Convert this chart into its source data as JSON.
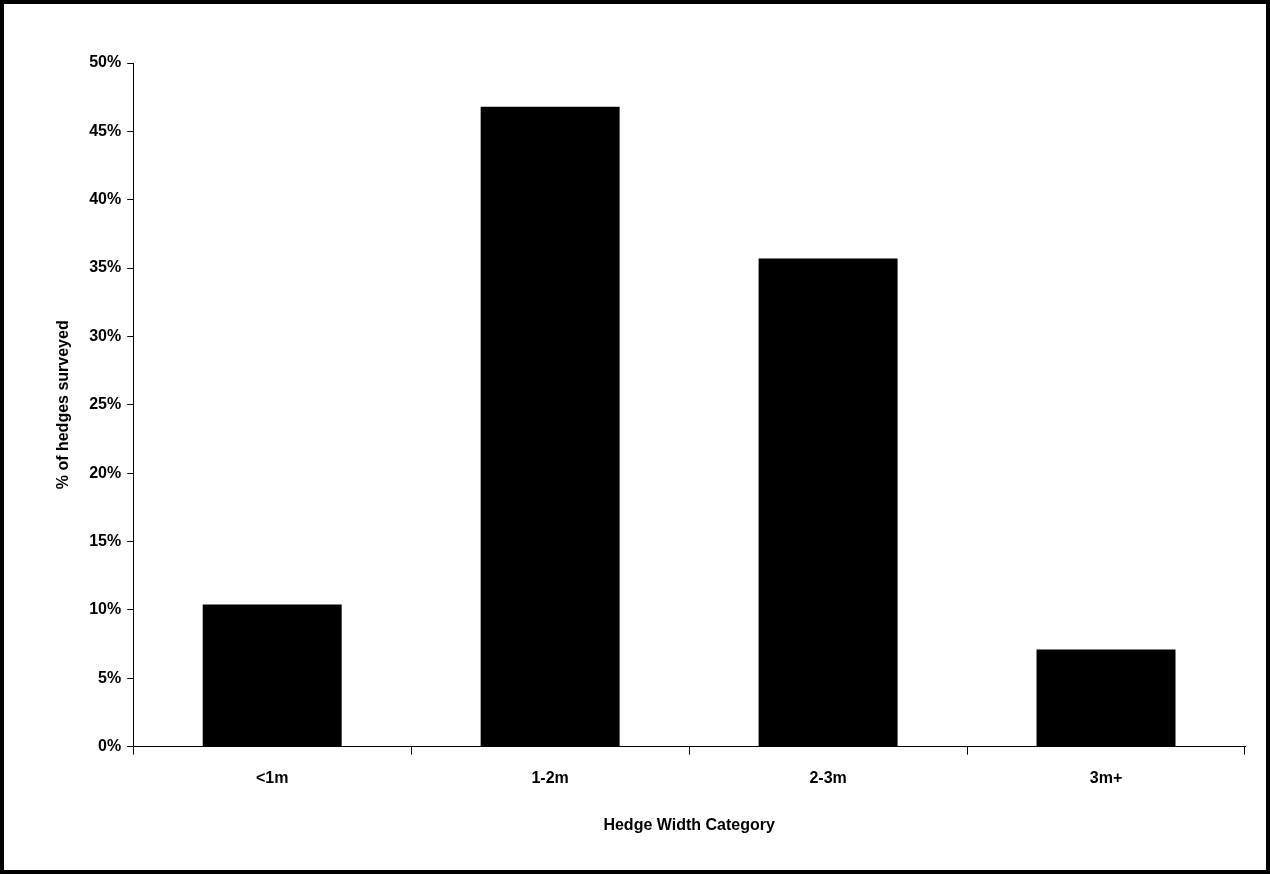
{
  "chart_data": {
    "type": "bar",
    "xlabel": "Hedge Width Category",
    "ylabel": "% of hedges surveyed",
    "categories": [
      "<1m",
      "1-2m",
      "2-3m",
      "3m+"
    ],
    "values": [
      10.4,
      46.8,
      35.7,
      7.1
    ],
    "color": "#000000",
    "ylim": [
      0,
      50
    ],
    "yticks": [
      {
        "value": 0,
        "label": "0%"
      },
      {
        "value": 5,
        "label": "5%"
      },
      {
        "value": 10,
        "label": "10%"
      },
      {
        "value": 15,
        "label": "15%"
      },
      {
        "value": 20,
        "label": "20%"
      },
      {
        "value": 25,
        "label": "25%"
      },
      {
        "value": 30,
        "label": "30%"
      },
      {
        "value": 35,
        "label": "35%"
      },
      {
        "value": 40,
        "label": "40%"
      },
      {
        "value": 45,
        "label": "45%"
      },
      {
        "value": 50,
        "label": "50%"
      }
    ],
    "grid": false,
    "legend": false
  }
}
